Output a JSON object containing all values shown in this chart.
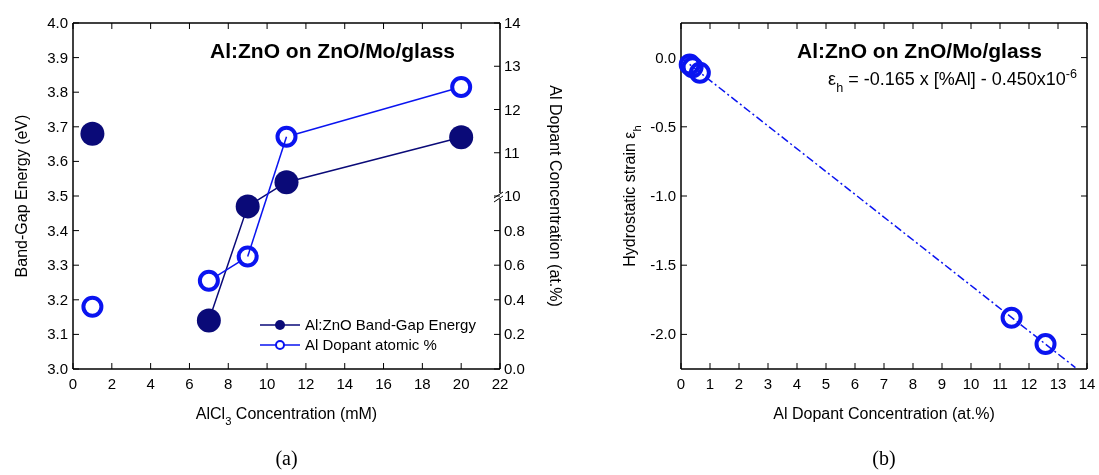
{
  "chart_data": [
    {
      "type": "line",
      "title": "Al:ZnO on ZnO/Mo/glass",
      "xlabel": "AlCl$_{3}$ Concentration (mM)",
      "ylabel": "Band-Gap Energy (eV)",
      "y2label": "Al Dopant Concentration (at.%)",
      "x": [
        1,
        null,
        7,
        9,
        11,
        20
      ],
      "series": [
        {
          "name": "Al:ZnO Band-Gap Energy",
          "color": "#0a0a78",
          "values": [
            3.68,
            null,
            3.14,
            3.47,
            3.54,
            3.67
          ]
        },
        {
          "name": "Al Dopant atomic %",
          "color": "#0a14f0",
          "axis": "y2",
          "x": [
            1,
            null,
            7,
            9
          ],
          "values": [
            0.36,
            null,
            0.51,
            0.65
          ]
        },
        {
          "color": "#0a14f0",
          "axis": "y3",
          "x": [
            11,
            20
          ],
          "values": [
            11.37,
            12.52
          ]
        }
      ],
      "xlim": [
        0,
        22
      ],
      "xticks": [
        0,
        2,
        4,
        6,
        8,
        10,
        12,
        14,
        16,
        18,
        20,
        22
      ],
      "ylim": [
        3,
        4
      ],
      "yticks": [
        {
          "value": 3,
          "label": "3.0"
        },
        3.1,
        3.2,
        3.3,
        3.4,
        3.5,
        3.6,
        3.7,
        3.8,
        3.9,
        {
          "value": 4,
          "label": "4.0"
        }
      ],
      "y2lim": [
        0,
        2
      ],
      "y2ticks": [
        {
          "value": 0,
          "label": "0.0"
        },
        0.2,
        0.4,
        0.6,
        0.8
      ],
      "y3lim": [
        6,
        14
      ],
      "y3ticks": [
        10,
        11,
        12,
        13,
        14
      ],
      "marker": "circle",
      "line_style": "solid",
      "legend": "bottom right",
      "grid": false,
      "annotations": [
        "(a)"
      ]
    },
    {
      "type": "scatter",
      "title": "Al:ZnO on ZnO/Mo/glass",
      "xlabel": "Al Dopant Concentration (at.%)",
      "ylabel": "Hydrostatic strain ε$_{h}$",
      "series": [
        {
          "color": "#0a14f0",
          "x": [
            0.3,
            0.4,
            0.65,
            11.4,
            12.57
          ],
          "values": [
            -0.05,
            -0.07,
            -0.11,
            -1.88,
            -2.07
          ]
        },
        {
          "type": "line",
          "color": "#0a14f0",
          "line_style": "dashed",
          "marker": "none",
          "x": [
            0,
            13.6
          ],
          "values": [
            0,
            -2.24
          ]
        }
      ],
      "xlim": [
        0,
        14
      ],
      "xticks": [
        0,
        1,
        2,
        3,
        4,
        5,
        6,
        7,
        8,
        9,
        10,
        11,
        12,
        13,
        14
      ],
      "ylim": [
        -2.25,
        0.25
      ],
      "yticks": [
        {
          "value": -2,
          "label": "-2.0"
        },
        -1.5,
        {
          "value": -1,
          "label": "-1.0"
        },
        -0.5,
        {
          "value": 0,
          "label": "0.0"
        }
      ],
      "marker": "circle",
      "legend": false,
      "grid": false,
      "annotations": [
        "ε$_{h}$ = -0.165 x [%Al] - 0.450x10$^{-6}$",
        "(b)"
      ]
    }
  ]
}
